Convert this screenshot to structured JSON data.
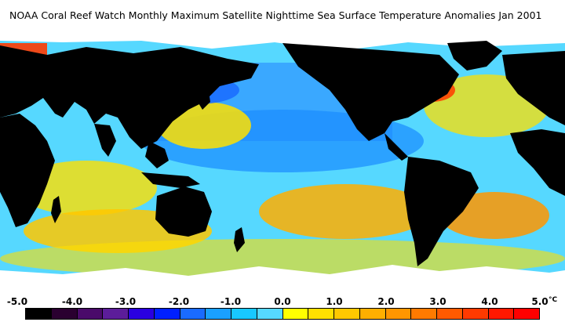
{
  "title": "NOAA Coral Reef Watch Monthly Maximum Satellite Nighttime Sea Surface Temperature Anomalies    Jan 2001",
  "legend": {
    "ticks": [
      "-5.0",
      "-4.0",
      "-3.0",
      "-2.0",
      "-1.0",
      "0.0",
      "1.0",
      "2.0",
      "3.0",
      "4.0",
      "5.0"
    ],
    "unit": "°C",
    "colors": [
      "#000000",
      "#2a0030",
      "#4a0a6a",
      "#5c1d9a",
      "#2a00e0",
      "#0020ff",
      "#1a6bff",
      "#1aa0ff",
      "#18c8ff",
      "#56d8ff",
      "#ffff00",
      "#ffe000",
      "#ffc800",
      "#ffaf00",
      "#ff9600",
      "#ff7a00",
      "#ff5a00",
      "#ff3a00",
      "#ff1800",
      "#ff0000"
    ]
  },
  "map_palette": {
    "land": "#000000",
    "ice": "#ffffff",
    "ocean_blue_deep": "#1a6bff",
    "ocean_blue": "#3aa8ff",
    "ocean_cyan": "#56d8ff",
    "ocean_yellow": "#ffe000",
    "ocean_orange": "#ffaf00",
    "ocean_red": "#ff5a00"
  }
}
